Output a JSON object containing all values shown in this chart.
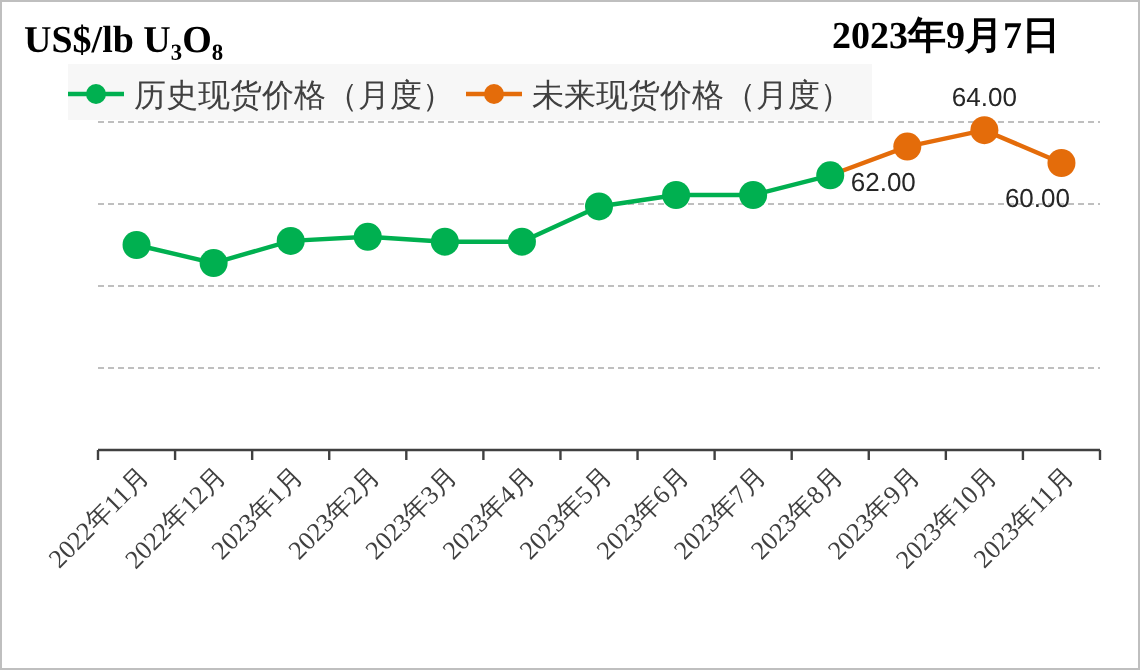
{
  "chart_data": {
    "type": "line",
    "title": "US$/lb U₃O₈",
    "subtitle": "2023年9月7日",
    "categories": [
      "2022年11月",
      "2022年12月",
      "2023年1月",
      "2023年2月",
      "2023年3月",
      "2023年4月",
      "2023年5月",
      "2023年6月",
      "2023年7月",
      "2023年8月",
      "2023年9月",
      "2023年10月",
      "2023年11月"
    ],
    "series": [
      {
        "name": "历史现货价格（月度）",
        "color": "#00b050",
        "values": [
          50.0,
          47.8,
          50.5,
          51.0,
          50.4,
          50.4,
          54.7,
          56.1,
          56.1,
          58.5,
          null,
          null,
          null
        ]
      },
      {
        "name": "未来现货价格（月度）",
        "color": "#e46c0a",
        "values": [
          null,
          null,
          null,
          null,
          null,
          null,
          null,
          null,
          null,
          58.5,
          62,
          64,
          60
        ],
        "value_labels": [
          null,
          null,
          null,
          null,
          null,
          null,
          null,
          null,
          null,
          null,
          "62.00",
          "64.00",
          "60.00"
        ]
      }
    ],
    "ylim": [
      25,
      65
    ],
    "yticks": [
      {
        "value": 35,
        "label": null
      },
      {
        "value": 45,
        "label": null
      },
      {
        "value": 55,
        "label": null
      },
      {
        "value": 65,
        "label": null
      }
    ],
    "grid": "y",
    "legend": "top left",
    "marker": "circle"
  }
}
